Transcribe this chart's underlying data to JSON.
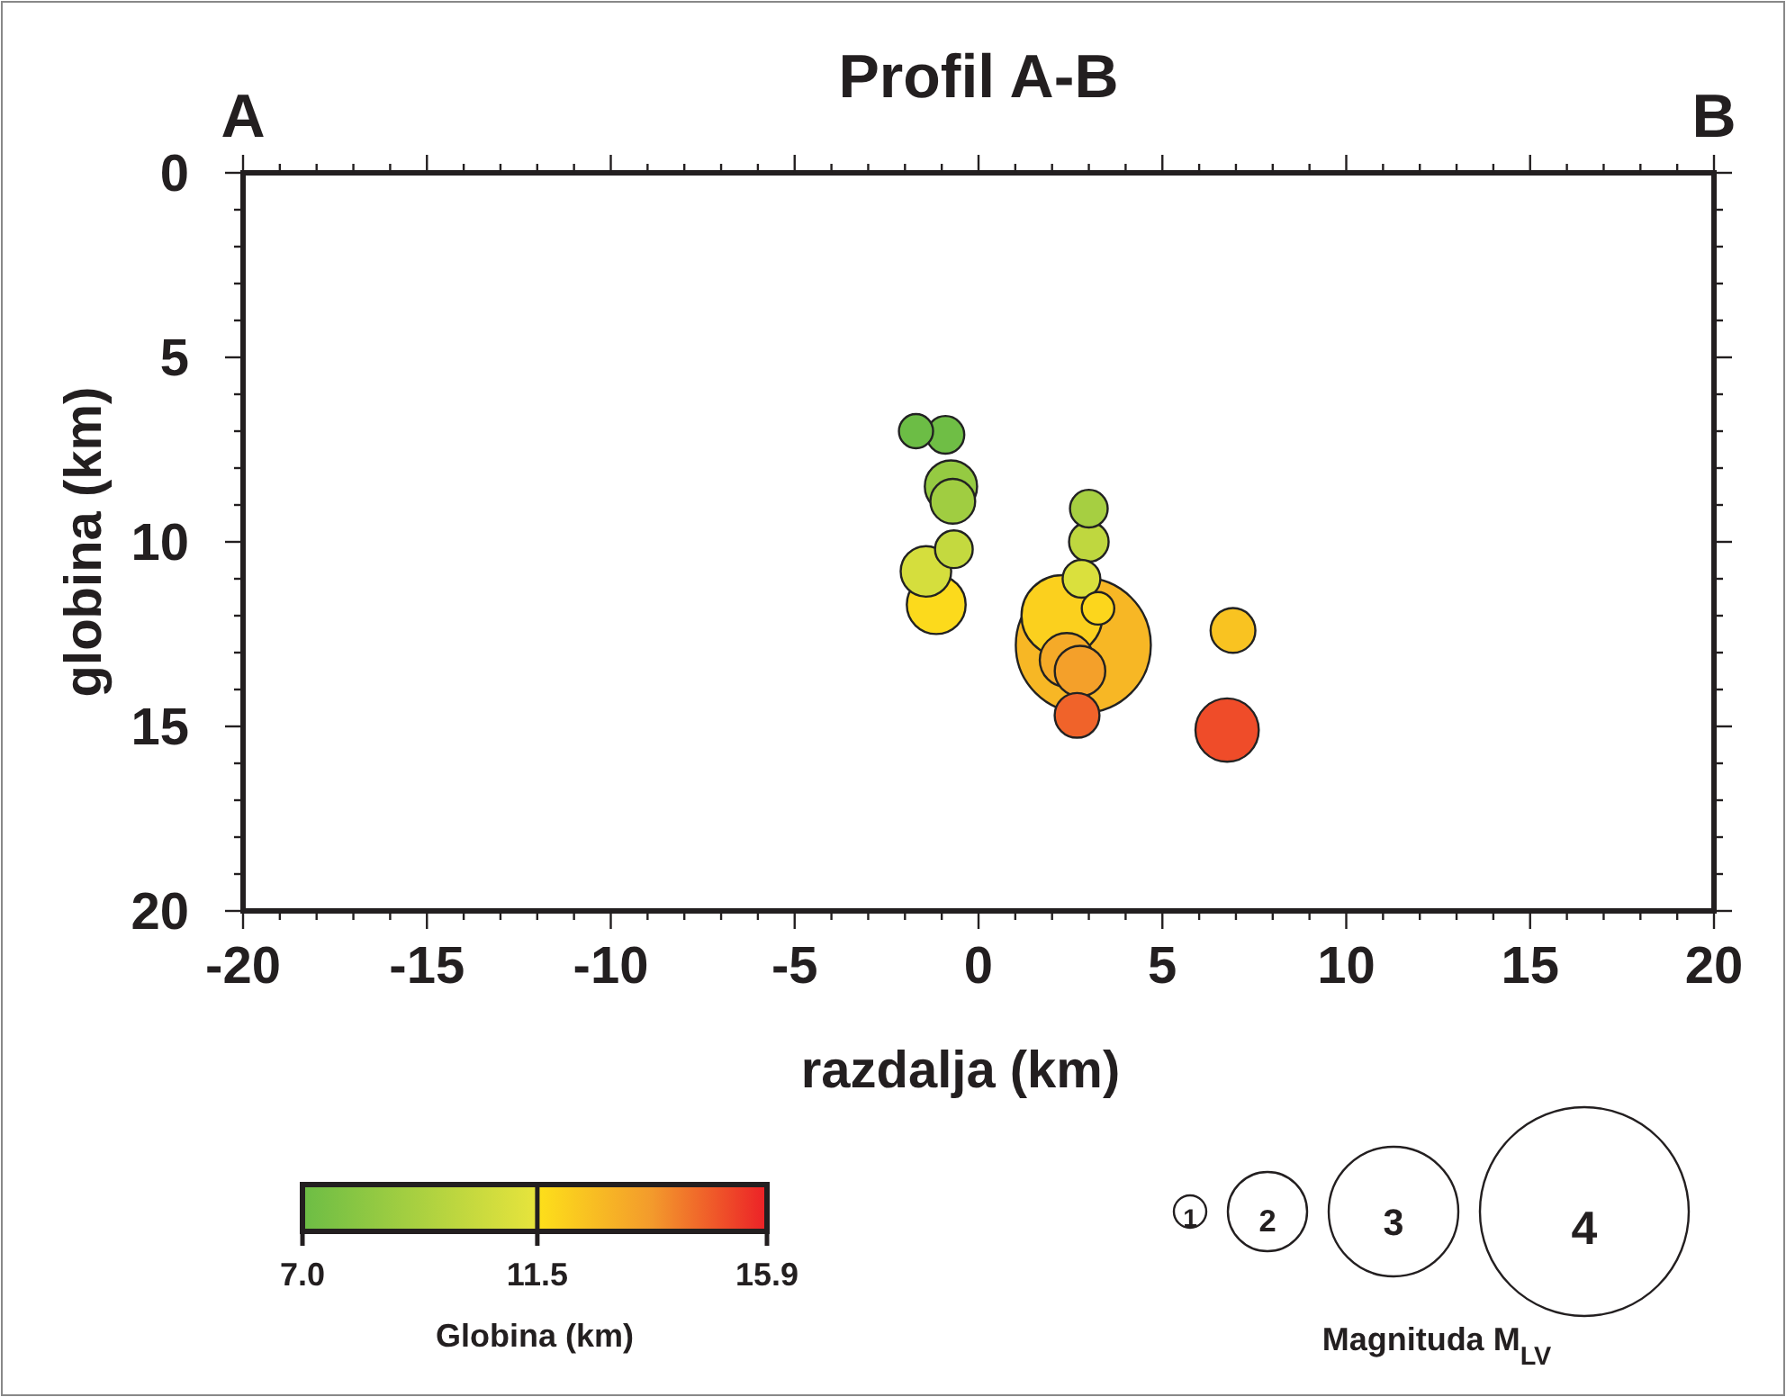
{
  "chart_data": {
    "type": "bubble",
    "title": "Profil A-B",
    "xlabel": "razdalja (km)",
    "ylabel": "globina (km)",
    "clabel": "Globina (km)",
    "legend_title": "Magnituda M$_{LV}$",
    "annotations": [
      "A",
      "B",
      "1",
      "2",
      "3",
      "4"
    ],
    "xlim": [
      -20,
      20
    ],
    "ylim": [
      20,
      0
    ],
    "xticks": [
      -20,
      {
        "value": -19,
        "label": null
      },
      {
        "value": -18,
        "label": null
      },
      {
        "value": -17,
        "label": null
      },
      {
        "value": -16,
        "label": null
      },
      -15,
      {
        "value": -14,
        "label": null
      },
      {
        "value": -13,
        "label": null
      },
      {
        "value": -12,
        "label": null
      },
      {
        "value": -11,
        "label": null
      },
      -10,
      {
        "value": -9,
        "label": null
      },
      {
        "value": -8,
        "label": null
      },
      {
        "value": -7,
        "label": null
      },
      {
        "value": -6,
        "label": null
      },
      -5,
      {
        "value": -4,
        "label": null
      },
      {
        "value": -3,
        "label": null
      },
      {
        "value": -2,
        "label": null
      },
      {
        "value": -1,
        "label": null
      },
      0,
      {
        "value": 1,
        "label": null
      },
      {
        "value": 2,
        "label": null
      },
      {
        "value": 3,
        "label": null
      },
      {
        "value": 4,
        "label": null
      },
      5,
      {
        "value": 6,
        "label": null
      },
      {
        "value": 7,
        "label": null
      },
      {
        "value": 8,
        "label": null
      },
      {
        "value": 9,
        "label": null
      },
      10,
      {
        "value": 11,
        "label": null
      },
      {
        "value": 12,
        "label": null
      },
      {
        "value": 13,
        "label": null
      },
      {
        "value": 14,
        "label": null
      },
      15,
      {
        "value": 16,
        "label": null
      },
      {
        "value": 17,
        "label": null
      },
      {
        "value": 18,
        "label": null
      },
      {
        "value": 19,
        "label": null
      },
      20
    ],
    "yticks": [
      0,
      {
        "value": 1,
        "label": null
      },
      {
        "value": 2,
        "label": null
      },
      {
        "value": 3,
        "label": null
      },
      {
        "value": 4,
        "label": null
      },
      5,
      {
        "value": 6,
        "label": null
      },
      {
        "value": 7,
        "label": null
      },
      {
        "value": 8,
        "label": null
      },
      {
        "value": 9,
        "label": null
      },
      10,
      {
        "value": 11,
        "label": null
      },
      {
        "value": 12,
        "label": null
      },
      {
        "value": 13,
        "label": null
      },
      {
        "value": 14,
        "label": null
      },
      15,
      {
        "value": 16,
        "label": null
      },
      {
        "value": 17,
        "label": null
      },
      {
        "value": 18,
        "label": null
      },
      {
        "value": 19,
        "label": null
      },
      20
    ],
    "clim": [
      7.0,
      15.9
    ],
    "cticks": [
      {
        "value": 7.0,
        "label": "7.0"
      },
      11.5,
      15.9
    ],
    "grid": false,
    "series": [
      {
        "x": [
          -1.7,
          -0.9,
          -0.75,
          -0.7,
          -0.67,
          -1.43,
          -1.15,
          3.0,
          3.0,
          2.8,
          2.85,
          2.27,
          3.25,
          2.76,
          2.4,
          2.68,
          6.92,
          6.76
        ],
        "values": [
          7.0,
          7.1,
          8.5,
          8.9,
          10.2,
          10.8,
          11.7,
          9.1,
          10.0,
          11.0,
          12.8,
          12.0,
          11.8,
          13.5,
          13.2,
          14.7,
          12.4,
          15.1
        ],
        "cvalues": [
          7.0,
          7.1,
          8.5,
          8.9,
          10.2,
          10.8,
          11.7,
          9.1,
          10.0,
          11.0,
          12.8,
          12.0,
          11.8,
          13.5,
          13.2,
          14.7,
          12.4,
          15.1
        ],
        "sizes": [
          0.064,
          0.078,
          0.15,
          0.11,
          0.078,
          0.14,
          0.19,
          0.078,
          0.086,
          0.078,
          1,
          0.36,
          0.058,
          0.14,
          0.16,
          0.11,
          0.11,
          0.22
        ]
      }
    ]
  }
}
